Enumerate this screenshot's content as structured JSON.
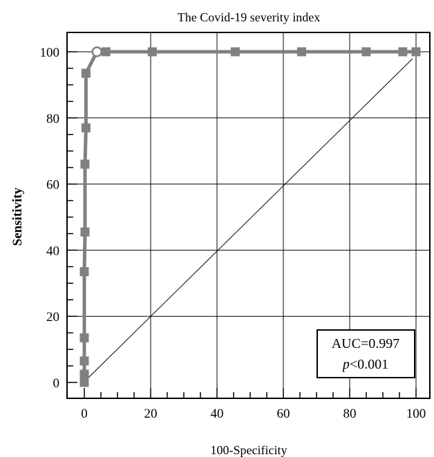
{
  "chart_data": {
    "type": "line",
    "title": "The Covid-19 severity index",
    "xlabel": "100-Specificity",
    "ylabel": "Sensitivity",
    "xlim": [
      0,
      100
    ],
    "ylim": [
      0,
      100
    ],
    "xticks": [
      0,
      20,
      40,
      60,
      80,
      100
    ],
    "yticks": [
      0,
      20,
      40,
      60,
      80,
      100
    ],
    "grid": true,
    "series": [
      {
        "points": [
          [
            0,
            0
          ],
          [
            0,
            2.5
          ],
          [
            0,
            6.5
          ],
          [
            0,
            13.5
          ],
          [
            0,
            33.5
          ],
          [
            0.2,
            45.5
          ],
          [
            0.2,
            66
          ],
          [
            0.5,
            77
          ],
          [
            0.5,
            93.5
          ],
          [
            3.8,
            100
          ],
          [
            6.5,
            100
          ],
          [
            20.5,
            100
          ],
          [
            45.5,
            100
          ],
          [
            65.5,
            100
          ],
          [
            85,
            100
          ],
          [
            96,
            100
          ],
          [
            100,
            100
          ]
        ],
        "color": "#808080",
        "marker": "square",
        "highlight_point": [
          3.8,
          100
        ]
      },
      {
        "points": [
          [
            0,
            0
          ],
          [
            100,
            100
          ]
        ],
        "color": "#000000",
        "style": "reference-diagonal"
      }
    ],
    "annotations": {
      "auc": "AUC=0.997",
      "p_symbol": "p",
      "p_value": "<0.001"
    }
  }
}
